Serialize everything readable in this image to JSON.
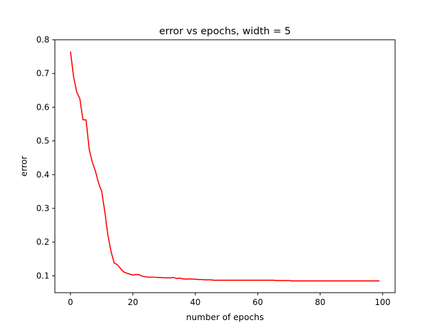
{
  "chart_data": {
    "type": "line",
    "title": "error vs epochs, width = 5",
    "xlabel": "number of epochs",
    "ylabel": "error",
    "xlim": [
      -5,
      104
    ],
    "ylim": [
      0.05,
      0.8
    ],
    "xticks": [
      0,
      20,
      40,
      60,
      80,
      100
    ],
    "yticks": [
      0.1,
      0.2,
      0.3,
      0.4,
      0.5,
      0.6,
      0.7,
      0.8
    ],
    "xtick_labels": [
      "0",
      "20",
      "40",
      "60",
      "80",
      "100"
    ],
    "ytick_labels": [
      "0.1",
      "0.2",
      "0.3",
      "0.4",
      "0.5",
      "0.6",
      "0.7",
      "0.8"
    ],
    "grid": false,
    "legend": "none",
    "series": [
      {
        "color": "#ff0000",
        "x": [
          0,
          1,
          2,
          3,
          4,
          5,
          6,
          7,
          8,
          9,
          10,
          11,
          12,
          13,
          14,
          15,
          16,
          17,
          18,
          19,
          20,
          21,
          22,
          23,
          24,
          25,
          26,
          27,
          28,
          29,
          30,
          31,
          32,
          33,
          34,
          35,
          36,
          37,
          38,
          39,
          40,
          41,
          42,
          43,
          44,
          45,
          46,
          47,
          48,
          49,
          50,
          51,
          52,
          53,
          54,
          55,
          56,
          57,
          58,
          59,
          60,
          61,
          62,
          63,
          64,
          65,
          66,
          67,
          68,
          69,
          70,
          71,
          72,
          73,
          74,
          75,
          76,
          77,
          78,
          79,
          80,
          81,
          82,
          83,
          84,
          85,
          86,
          87,
          88,
          89,
          90,
          91,
          92,
          93,
          94,
          95,
          96,
          97,
          98,
          99
        ],
        "y": [
          0.765,
          0.69,
          0.645,
          0.625,
          0.563,
          0.562,
          0.475,
          0.437,
          0.41,
          0.375,
          0.35,
          0.29,
          0.22,
          0.172,
          0.138,
          0.133,
          0.122,
          0.112,
          0.108,
          0.105,
          0.102,
          0.104,
          0.103,
          0.099,
          0.097,
          0.096,
          0.096,
          0.096,
          0.095,
          0.095,
          0.094,
          0.094,
          0.094,
          0.095,
          0.092,
          0.093,
          0.091,
          0.09,
          0.091,
          0.09,
          0.09,
          0.089,
          0.089,
          0.088,
          0.088,
          0.088,
          0.087,
          0.087,
          0.087,
          0.087,
          0.087,
          0.087,
          0.087,
          0.087,
          0.087,
          0.087,
          0.087,
          0.087,
          0.087,
          0.087,
          0.087,
          0.087,
          0.087,
          0.087,
          0.087,
          0.087,
          0.086,
          0.086,
          0.086,
          0.086,
          0.086,
          0.085,
          0.085,
          0.085,
          0.085,
          0.085,
          0.085,
          0.085,
          0.085,
          0.085,
          0.085,
          0.085,
          0.085,
          0.085,
          0.085,
          0.085,
          0.085,
          0.085,
          0.085,
          0.085,
          0.085,
          0.085,
          0.085,
          0.085,
          0.085,
          0.085,
          0.085,
          0.085,
          0.085,
          0.085
        ]
      }
    ]
  }
}
